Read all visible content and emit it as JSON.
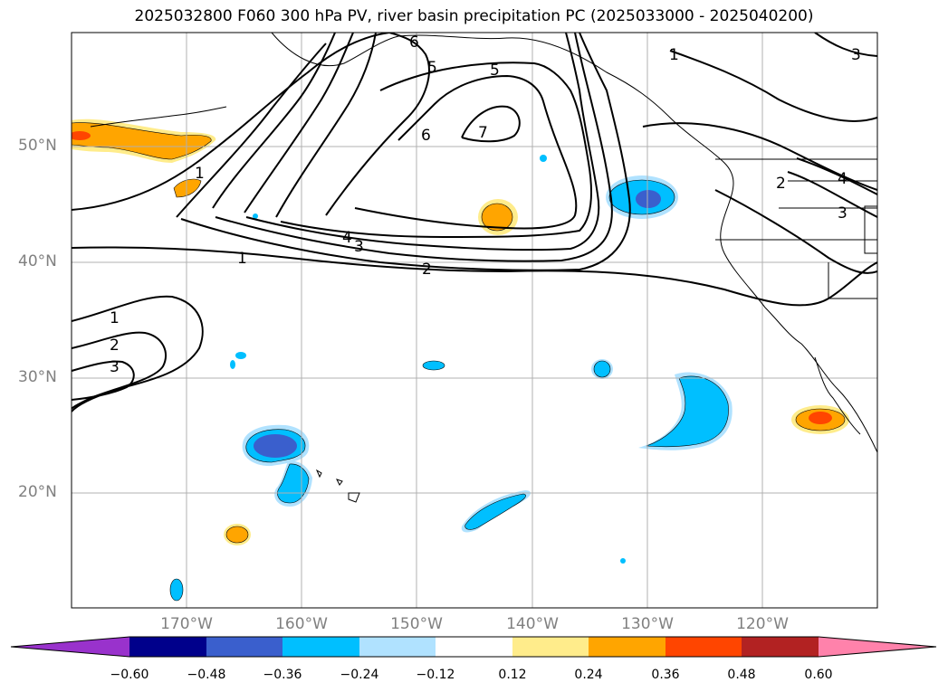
{
  "title": "2025032800 F060 300 hPa PV, river basin precipitation PC (2025033000 - 2025040200)",
  "map": {
    "lat_labels": [
      "50°N",
      "40°N",
      "30°N",
      "20°N"
    ],
    "lon_labels": [
      "170°W",
      "160°W",
      "150°W",
      "140°W",
      "130°W",
      "120°W"
    ],
    "pv_contour_labels": [
      "1",
      "1",
      "1",
      "1",
      "2",
      "2",
      "2",
      "3",
      "3",
      "3",
      "3",
      "4",
      "4",
      "5",
      "5",
      "6",
      "6",
      "7"
    ]
  },
  "colorbar": {
    "colors": [
      "#9932cc",
      "#00008b",
      "#3a5fcd",
      "#00bfff",
      "#b0e2ff",
      "#ffffff",
      "#ffec8b",
      "#ffa500",
      "#ff4500",
      "#b22222",
      "#ff82ab"
    ],
    "tick_labels": [
      "−0.60",
      "−0.48",
      "−0.36",
      "−0.24",
      "−0.12",
      "0.12",
      "0.24",
      "0.36",
      "0.48",
      "0.60"
    ]
  }
}
